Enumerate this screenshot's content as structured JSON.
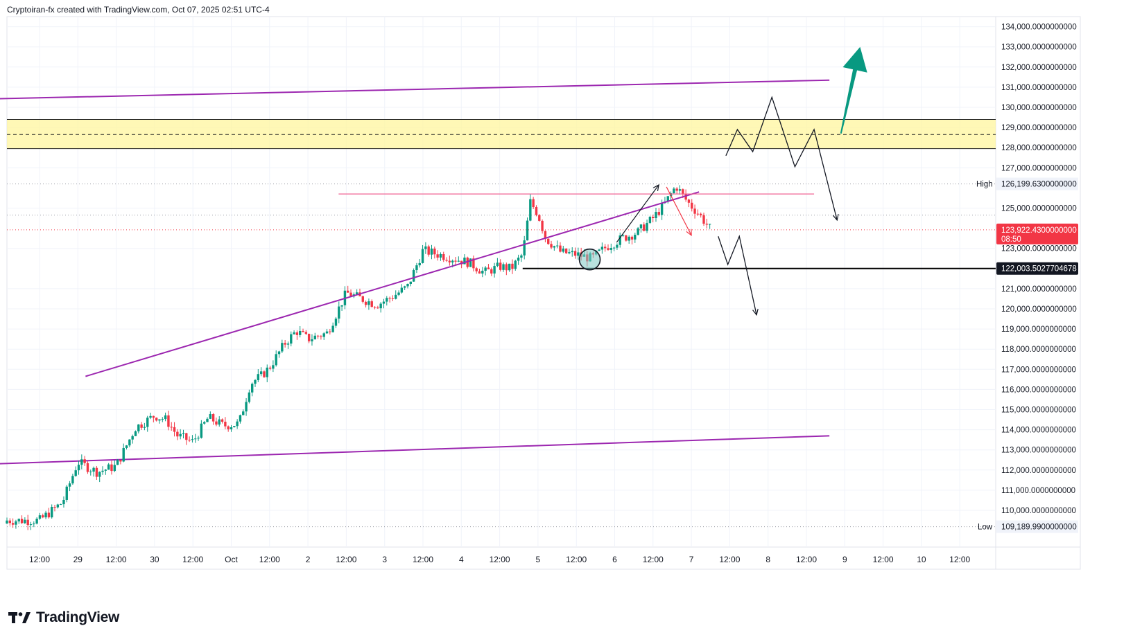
{
  "header": {
    "text": "Cryptoiran-fx created with TradingView.com, Oct 07, 2025 02:51 UTC-4"
  },
  "brand": {
    "text": "TradingView",
    "icon": "tradingview-logo-icon"
  },
  "colors": {
    "up": "#089981",
    "down": "#f23645",
    "channel": "#9c27b0",
    "zone": "#fff59d",
    "resistance": "#f06292",
    "current_price": "#f23645",
    "support": "#000000",
    "target_arrow": "#089981"
  },
  "chart_data": {
    "type": "candlestick",
    "symbol_price_scale": "right",
    "x_labels": [
      "12:00",
      "29",
      "12:00",
      "30",
      "12:00",
      "Oct",
      "12:00",
      "2",
      "12:00",
      "3",
      "12:00",
      "4",
      "12:00",
      "5",
      "12:00",
      "6",
      "12:00",
      "7",
      "12:00",
      "8",
      "12:00",
      "9",
      "12:00",
      "10",
      "12:00"
    ],
    "ylim": [
      109000,
      134300
    ],
    "y_ticks": [
      134000,
      133000,
      132000,
      131000,
      130000,
      129000,
      128000,
      127000,
      125000,
      123000,
      121000,
      120000,
      119000,
      118000,
      117000,
      116000,
      115000,
      114000,
      113000,
      112000,
      111000,
      110000
    ],
    "y_tick_labels": [
      "134,000.0000000000",
      "133,000.0000000000",
      "132,000.0000000000",
      "131,000.0000000000",
      "130,000.0000000000",
      "129,000.0000000000",
      "128,000.0000000000",
      "127,000.0000000000",
      "125,000.0000000000",
      "123,000.0000000000",
      "121,000.0000000000",
      "120,000.0000000000",
      "119,000.0000000000",
      "118,000.0000000000",
      "117,000.0000000000",
      "116,000.0000000000",
      "115,000.0000000000",
      "114,000.0000000000",
      "113,000.0000000000",
      "112,000.0000000000",
      "111,000.0000000000",
      "110,000.0000000000"
    ],
    "high": {
      "label": "High",
      "value": 126199.63,
      "text": "126,199.6300000000"
    },
    "low": {
      "label": "Low",
      "value": 109189.99,
      "text": "109,189.9900000000"
    },
    "last_price": {
      "value": 123922.43,
      "text": "123,922.4300000000",
      "countdown": "08:50"
    },
    "support_line": {
      "value": 122003.5027704678,
      "text": "122,003.5027704678"
    },
    "zone": {
      "low": 127950,
      "high": 129400,
      "mid": 128650
    },
    "resistance_level": 125700,
    "price_path": [
      [
        0,
        109500
      ],
      [
        0.6,
        110400
      ],
      [
        1.0,
        112400
      ],
      [
        1.5,
        111900
      ],
      [
        2.0,
        112200
      ],
      [
        2.5,
        114100
      ],
      [
        3.0,
        114700
      ],
      [
        3.3,
        114500
      ],
      [
        3.6,
        113700
      ],
      [
        4.0,
        113400
      ],
      [
        4.4,
        114600
      ],
      [
        4.8,
        114200
      ],
      [
        5.2,
        114300
      ],
      [
        5.5,
        116300
      ],
      [
        5.8,
        116700
      ],
      [
        6.0,
        117100
      ],
      [
        6.4,
        118300
      ],
      [
        6.7,
        118900
      ],
      [
        7.0,
        118500
      ],
      [
        7.5,
        118800
      ],
      [
        8.0,
        120800
      ],
      [
        8.4,
        120500
      ],
      [
        8.8,
        120200
      ],
      [
        9.2,
        120600
      ],
      [
        9.6,
        121100
      ],
      [
        10.0,
        122900
      ],
      [
        10.4,
        122700
      ],
      [
        10.8,
        122500
      ],
      [
        11.2,
        122300
      ],
      [
        11.6,
        121800
      ],
      [
        12.0,
        122100
      ],
      [
        12.3,
        122000
      ],
      [
        12.6,
        122700
      ],
      [
        12.8,
        125300
      ],
      [
        13.0,
        124700
      ],
      [
        13.2,
        123500
      ],
      [
        13.6,
        122800
      ],
      [
        14.0,
        122700
      ],
      [
        14.4,
        122500
      ],
      [
        14.8,
        123100
      ],
      [
        15.2,
        123500
      ],
      [
        15.6,
        123800
      ],
      [
        16.0,
        124500
      ],
      [
        16.3,
        125200
      ],
      [
        16.6,
        126100
      ],
      [
        16.9,
        125300
      ],
      [
        17.2,
        124700
      ],
      [
        17.5,
        123950
      ]
    ],
    "channel": {
      "upper": [
        [
          -5.2,
          130250
        ],
        [
          20.6,
          131350
        ]
      ],
      "lower": [
        [
          -5.2,
          112050
        ],
        [
          20.6,
          113700
        ]
      ]
    },
    "trendline": [
      [
        1.2,
        116650
      ],
      [
        17.2,
        125800
      ]
    ],
    "scenario_paths": [
      [
        [
          17.9,
          127600
        ],
        [
          18.2,
          128900
        ],
        [
          18.6,
          127800
        ],
        [
          19.1,
          130500
        ],
        [
          19.7,
          127050
        ],
        [
          20.2,
          128900
        ],
        [
          20.8,
          124400
        ]
      ],
      [
        [
          17.7,
          123600
        ],
        [
          17.95,
          122200
        ],
        [
          18.25,
          123600
        ],
        [
          18.7,
          119700
        ]
      ]
    ],
    "breakout_arrow": {
      "from": [
        20.9,
        128700
      ],
      "to": [
        21.4,
        133000
      ]
    }
  }
}
